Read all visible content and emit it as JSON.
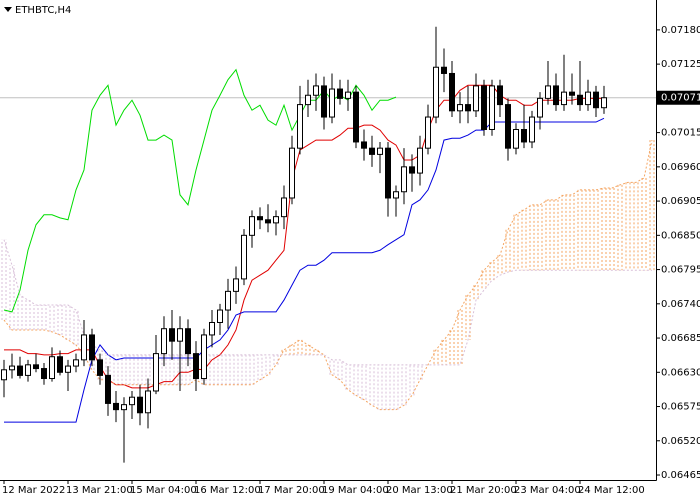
{
  "chart_data": {
    "type": "candlestick",
    "title": "ETHBTC,H4",
    "categories": [
      "12 Mar 2022",
      null,
      null,
      null,
      null,
      null,
      null,
      null,
      "13 Mar 21:00",
      null,
      null,
      null,
      null,
      null,
      null,
      null,
      "15 Mar 04:00",
      null,
      null,
      null,
      null,
      null,
      null,
      null,
      "16 Mar 12:00",
      null,
      null,
      null,
      null,
      null,
      null,
      null,
      "17 Mar 20:00",
      null,
      null,
      null,
      null,
      null,
      null,
      null,
      "19 Mar 04:00",
      null,
      null,
      null,
      null,
      null,
      null,
      null,
      "20 Mar 13:00",
      null,
      null,
      null,
      null,
      null,
      null,
      null,
      "21 Mar 20:00",
      null,
      null,
      null,
      null,
      null,
      null,
      null,
      "23 Mar 04:00",
      null,
      null,
      null,
      null,
      null,
      null,
      null,
      "24 Mar 12:00",
      null,
      null,
      null,
      null,
      null,
      null,
      null,
      null,
      null
    ],
    "ohlc": {
      "open": [
        0.06618,
        0.06634,
        0.0664,
        0.06625,
        0.06642,
        0.06636,
        0.0662,
        0.06655,
        0.0663,
        0.0664,
        0.0665,
        0.0669,
        0.0665,
        0.06625,
        0.0658,
        0.0657,
        0.06578,
        0.0659,
        0.06565,
        0.066,
        0.0666,
        0.067,
        0.0668,
        0.067,
        0.0666,
        0.0662,
        0.0669,
        0.0671,
        0.0673,
        0.0676,
        0.0678,
        0.0685,
        0.0688,
        0.06875,
        0.0687,
        0.0688,
        0.0691,
        0.0699,
        0.0706,
        0.07075,
        0.0709,
        0.0704,
        0.07085,
        0.0707,
        0.0708,
        0.07,
        0.0699,
        0.0698,
        0.0699,
        0.0691,
        0.0692,
        0.0696,
        0.0695,
        0.0699,
        0.0704,
        0.0712,
        0.0711,
        0.0705,
        0.0706,
        0.0705,
        0.0709,
        0.0702,
        0.0709,
        0.0706,
        0.0699,
        0.0702,
        0.07,
        0.0704,
        0.0707,
        0.0709,
        0.0706,
        0.0708,
        0.07075,
        0.0706,
        0.0708,
        0.07055,
        null,
        null,
        null,
        null,
        null,
        null
      ],
      "high": [
        0.0665,
        0.0666,
        0.06655,
        0.0665,
        0.0666,
        0.06645,
        0.0667,
        0.06665,
        0.0665,
        0.0666,
        0.06714,
        0.067,
        0.0666,
        0.0664,
        0.066,
        0.0659,
        0.066,
        0.0661,
        0.0662,
        0.0669,
        0.0672,
        0.0673,
        0.0672,
        0.06715,
        0.0668,
        0.067,
        0.0673,
        0.0674,
        0.0678,
        0.068,
        0.0686,
        0.0689,
        0.06895,
        0.069,
        0.0689,
        0.0693,
        0.0701,
        0.0709,
        0.071,
        0.0711,
        0.07105,
        0.0711,
        0.071,
        0.071,
        0.0709,
        0.0702,
        0.0701,
        0.07,
        0.07,
        0.0693,
        0.0699,
        0.0698,
        0.0701,
        0.0706,
        0.07185,
        0.0715,
        0.0713,
        0.0708,
        0.0709,
        0.0711,
        0.071,
        0.071,
        0.071,
        0.0707,
        0.0703,
        0.0706,
        0.0705,
        0.0708,
        0.0713,
        0.0711,
        0.0714,
        0.0711,
        0.0713,
        0.071,
        0.0709,
        0.0709,
        null,
        null,
        null,
        null,
        null,
        null
      ],
      "low": [
        0.0659,
        0.0662,
        0.0662,
        0.06615,
        0.0663,
        0.0661,
        0.06615,
        0.06625,
        0.066,
        0.0663,
        0.0664,
        0.0664,
        0.0661,
        0.0656,
        0.0655,
        0.06485,
        0.06555,
        0.06545,
        0.0654,
        0.06595,
        0.0664,
        0.0665,
        0.066,
        0.0664,
        0.066,
        0.0661,
        0.0667,
        0.0669,
        0.067,
        0.0674,
        0.0677,
        0.0683,
        0.0686,
        0.06855,
        0.0685,
        0.0686,
        0.069,
        0.0698,
        0.0704,
        0.0705,
        0.0702,
        0.0703,
        0.0706,
        0.0705,
        0.0699,
        0.0697,
        0.0696,
        0.0695,
        0.0688,
        0.0688,
        0.069,
        0.0692,
        0.0693,
        0.0698,
        0.0703,
        0.0708,
        0.0704,
        0.0703,
        0.0703,
        0.0704,
        0.0701,
        0.0701,
        0.0704,
        0.0697,
        0.0698,
        0.0699,
        0.0699,
        0.0702,
        0.0706,
        0.0705,
        0.0705,
        0.0706,
        0.0705,
        0.0705,
        0.0704,
        0.07045,
        null,
        null,
        null,
        null,
        null,
        null
      ],
      "close": [
        0.06634,
        0.0664,
        0.06625,
        0.06642,
        0.06636,
        0.0662,
        0.06655,
        0.0663,
        0.0664,
        0.0665,
        0.0669,
        0.0665,
        0.06625,
        0.0658,
        0.0657,
        0.06578,
        0.0659,
        0.06565,
        0.066,
        0.0666,
        0.067,
        0.0668,
        0.067,
        0.0666,
        0.0662,
        0.0669,
        0.0671,
        0.0673,
        0.0676,
        0.0678,
        0.0685,
        0.0688,
        0.06875,
        0.0687,
        0.0688,
        0.0691,
        0.0699,
        0.0706,
        0.07075,
        0.0709,
        0.0704,
        0.07085,
        0.0707,
        0.0708,
        0.07,
        0.0699,
        0.0698,
        0.0699,
        0.0691,
        0.0692,
        0.0696,
        0.0695,
        0.0699,
        0.0704,
        0.0712,
        0.0711,
        0.0705,
        0.0706,
        0.0705,
        0.0709,
        0.0702,
        0.0709,
        0.0706,
        0.0699,
        0.0702,
        0.07,
        0.0704,
        0.0707,
        0.0709,
        0.0706,
        0.0708,
        0.07075,
        0.0706,
        0.0708,
        0.07055,
        0.07071,
        null,
        null,
        null,
        null,
        null,
        null
      ],
      "bull_color": "#ffffff",
      "bear_color": "#000000",
      "outline_color": "#000000"
    },
    "series": [
      {
        "color": "#e00000",
        "style": "solid",
        "values": [
          0.06666,
          0.06666,
          0.06666,
          0.0666,
          0.0666,
          0.06658,
          0.06658,
          0.0666,
          0.0666,
          0.06666,
          0.06666,
          0.06666,
          0.0664,
          0.06618,
          0.0661,
          0.0661,
          0.06605,
          0.06605,
          0.06605,
          0.0661,
          0.06615,
          0.06615,
          0.0663,
          0.0663,
          0.06635,
          0.06634,
          0.0665,
          0.06658,
          0.06674,
          0.06698,
          0.06746,
          0.06778,
          0.06786,
          0.06794,
          0.0681,
          0.06826,
          0.06939,
          0.06987,
          0.06995,
          0.07003,
          0.07003,
          0.07003,
          0.07011,
          0.07022,
          0.07022,
          0.07027,
          0.07027,
          0.07019,
          0.07003,
          0.06995,
          0.06971,
          0.06971,
          0.06979,
          0.07019,
          0.07051,
          0.07067,
          0.07067,
          0.07083,
          0.07091,
          0.07091,
          0.07091,
          0.07091,
          0.07075,
          0.07067,
          0.07067,
          0.07059,
          0.07059,
          0.07067,
          0.07067,
          0.07067,
          0.07067,
          0.07067,
          0.0707,
          0.0707,
          0.0707,
          0.0707,
          null,
          null,
          null,
          null,
          null,
          null
        ]
      },
      {
        "color": "#0000e0",
        "style": "solid",
        "values": [
          0.0655,
          0.0655,
          0.0655,
          0.0655,
          0.0655,
          0.0655,
          0.0655,
          0.0655,
          0.0655,
          0.0655,
          0.06602,
          0.0665,
          0.06674,
          0.06658,
          0.0665,
          0.06653,
          0.06653,
          0.06653,
          0.06653,
          0.06653,
          0.06653,
          0.06653,
          0.06653,
          0.06653,
          0.06653,
          0.06666,
          0.06674,
          0.06682,
          0.06698,
          0.06722,
          0.06727,
          0.06727,
          0.06727,
          0.06727,
          0.06727,
          0.06746,
          0.0677,
          0.06794,
          0.06802,
          0.06802,
          0.0681,
          0.06822,
          0.06822,
          0.06822,
          0.06822,
          0.06822,
          0.06822,
          0.06826,
          0.06835,
          0.06843,
          0.06851,
          0.06899,
          0.06907,
          0.06923,
          0.06955,
          0.07003,
          0.07006,
          0.07006,
          0.07011,
          0.07019,
          0.07019,
          0.07032,
          0.07032,
          0.07032,
          0.07032,
          0.07032,
          0.07032,
          0.07032,
          0.07032,
          0.07032,
          0.07032,
          0.07032,
          0.07032,
          0.07032,
          0.07032,
          0.07038,
          null,
          null,
          null,
          null,
          null,
          null
        ]
      },
      {
        "color": "#00dd00",
        "style": "solid",
        "values": [
          0.0673,
          0.06727,
          0.06762,
          0.06826,
          0.06867,
          0.06883,
          0.06883,
          0.06878,
          0.06875,
          0.06923,
          0.06955,
          0.07051,
          0.07075,
          0.07091,
          0.07027,
          0.07051,
          0.07067,
          0.07043,
          0.07003,
          0.07003,
          0.07011,
          0.07003,
          0.06915,
          0.06899,
          0.06955,
          0.07003,
          0.07051,
          0.07075,
          0.071,
          0.07116,
          0.07075,
          0.07051,
          0.07059,
          0.07035,
          0.07027,
          0.07059,
          0.07019,
          0.07043,
          0.07067,
          0.07067,
          0.07083,
          0.07067,
          0.07075,
          0.07067,
          0.07091,
          0.07075,
          0.07051,
          0.07067,
          0.07067,
          0.07072,
          null,
          null,
          null,
          null,
          null,
          null,
          null,
          null,
          null,
          null,
          null,
          null,
          null,
          null,
          null,
          null,
          null,
          null,
          null,
          null,
          null,
          null,
          null,
          null,
          null,
          null,
          null,
          null,
          null,
          null,
          null,
          null
        ]
      },
      {
        "color": "#f4a460",
        "style": "cloud",
        "values": [
          0.06714,
          0.06698,
          0.06698,
          0.06698,
          0.06698,
          0.06698,
          0.06695,
          0.0669,
          0.06682,
          0.06674,
          0.06658,
          0.06634,
          0.06618,
          0.06618,
          0.0661,
          0.0661,
          0.0661,
          0.0661,
          0.0661,
          0.0661,
          0.0661,
          0.0661,
          0.0661,
          0.0661,
          0.06618,
          0.0661,
          0.0661,
          0.0661,
          0.0661,
          0.0661,
          0.0661,
          0.0661,
          0.06618,
          0.06626,
          0.06642,
          0.06666,
          0.06674,
          0.06682,
          0.06674,
          0.06666,
          0.06658,
          0.06626,
          0.06618,
          0.06602,
          0.06593,
          0.06586,
          0.06577,
          0.0657,
          0.0657,
          0.0657,
          0.06577,
          0.06593,
          0.06618,
          0.06642,
          0.06666,
          0.06682,
          0.06698,
          0.0673,
          0.06754,
          0.0677,
          0.06794,
          0.06807,
          0.06818,
          0.06859,
          0.06883,
          0.06891,
          0.06899,
          0.06899,
          0.06907,
          0.06907,
          0.06915,
          0.06915,
          0.06923,
          0.06923,
          0.06923,
          0.06926,
          0.06926,
          0.06931,
          0.06935,
          0.06935,
          0.06942,
          0.07003
        ]
      },
      {
        "color": "#d8bfd8",
        "style": "cloud",
        "values": [
          0.06843,
          0.06802,
          0.06754,
          0.06746,
          0.06738,
          0.06738,
          0.06738,
          0.06738,
          0.06738,
          0.0673,
          0.0669,
          0.06674,
          0.06666,
          0.06658,
          0.06658,
          0.06658,
          0.06658,
          0.06658,
          0.06658,
          0.06658,
          0.06658,
          0.06658,
          0.06658,
          0.06658,
          0.06658,
          0.06658,
          0.06658,
          0.06658,
          0.06658,
          0.06658,
          0.06658,
          0.06658,
          0.06658,
          0.06658,
          0.06658,
          0.06658,
          0.06658,
          0.06658,
          0.06658,
          0.06658,
          0.06658,
          0.0665,
          0.0665,
          0.06642,
          0.06642,
          0.06642,
          0.06642,
          0.06642,
          0.06642,
          0.06642,
          0.06642,
          0.06642,
          0.06642,
          0.06642,
          0.06642,
          0.06642,
          0.06642,
          0.06642,
          0.06682,
          0.06746,
          0.06762,
          0.06778,
          0.06786,
          0.06791,
          0.06794,
          0.06794,
          0.06794,
          0.06794,
          0.06794,
          0.06794,
          0.06794,
          0.06794,
          0.06794,
          0.06794,
          0.06794,
          0.06794,
          0.06794,
          0.06794,
          0.06794,
          0.06794,
          0.06794,
          0.06794
        ]
      }
    ],
    "current_price": 0.07071,
    "current_price_color": "#c0c0c0",
    "ylim": [
      0.06457,
      0.07228
    ],
    "yticks": [
      {
        "value": 0.0718,
        "label": "0.07180"
      },
      {
        "value": 0.07125,
        "label": "0.07125"
      },
      {
        "value": 0.07015,
        "label": "0.07015"
      },
      {
        "value": 0.0696,
        "label": "0.06960"
      },
      {
        "value": 0.06905,
        "label": "0.06905"
      },
      {
        "value": 0.0685,
        "label": "0.06850"
      },
      {
        "value": 0.06795,
        "label": "0.06795"
      },
      {
        "value": 0.0674,
        "label": "0.06740"
      },
      {
        "value": 0.06685,
        "label": "0.06685"
      },
      {
        "value": 0.0663,
        "label": "0.06630"
      },
      {
        "value": 0.06575,
        "label": "0.06575"
      },
      {
        "value": 0.0652,
        "label": "0.06520"
      },
      {
        "value": 0.06465,
        "label": "0.06465"
      }
    ],
    "grid": false
  }
}
